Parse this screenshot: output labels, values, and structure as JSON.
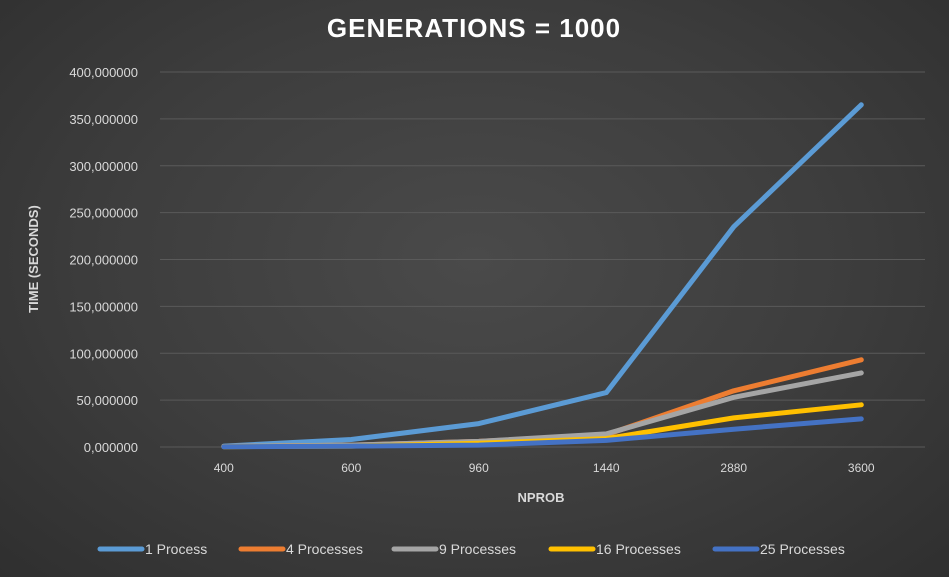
{
  "chart_data": {
    "type": "line",
    "title": "GENERATIONS = 1000",
    "xlabel": "NPROB",
    "ylabel": "TIME (SECONDS)",
    "categories": [
      "400",
      "600",
      "960",
      "1440",
      "2880",
      "3600"
    ],
    "ylim": [
      0,
      400
    ],
    "yticks": [
      0,
      50,
      100,
      150,
      200,
      250,
      300,
      350,
      400
    ],
    "ytick_labels": [
      "0,000000",
      "50,000000",
      "100,000000",
      "150,000000",
      "200,000000",
      "250,000000",
      "300,000000",
      "350,000000",
      "400,000000"
    ],
    "grid": true,
    "legend_position": "bottom",
    "series": [
      {
        "name": "1 Process",
        "color": "#5b9bd5",
        "values": [
          1,
          8,
          25,
          58,
          235,
          365
        ]
      },
      {
        "name": "4 Processes",
        "color": "#ed7d31",
        "values": [
          0.5,
          2,
          6,
          13,
          60,
          93
        ]
      },
      {
        "name": "9 Processes",
        "color": "#a5a5a5",
        "values": [
          0.5,
          2,
          6,
          14,
          53,
          79
        ]
      },
      {
        "name": "16 Processes",
        "color": "#ffc000",
        "values": [
          0.3,
          1,
          4,
          9,
          31,
          45
        ]
      },
      {
        "name": "25 Processes",
        "color": "#4472c4",
        "values": [
          0.2,
          1,
          2,
          7,
          19,
          30
        ]
      }
    ]
  }
}
